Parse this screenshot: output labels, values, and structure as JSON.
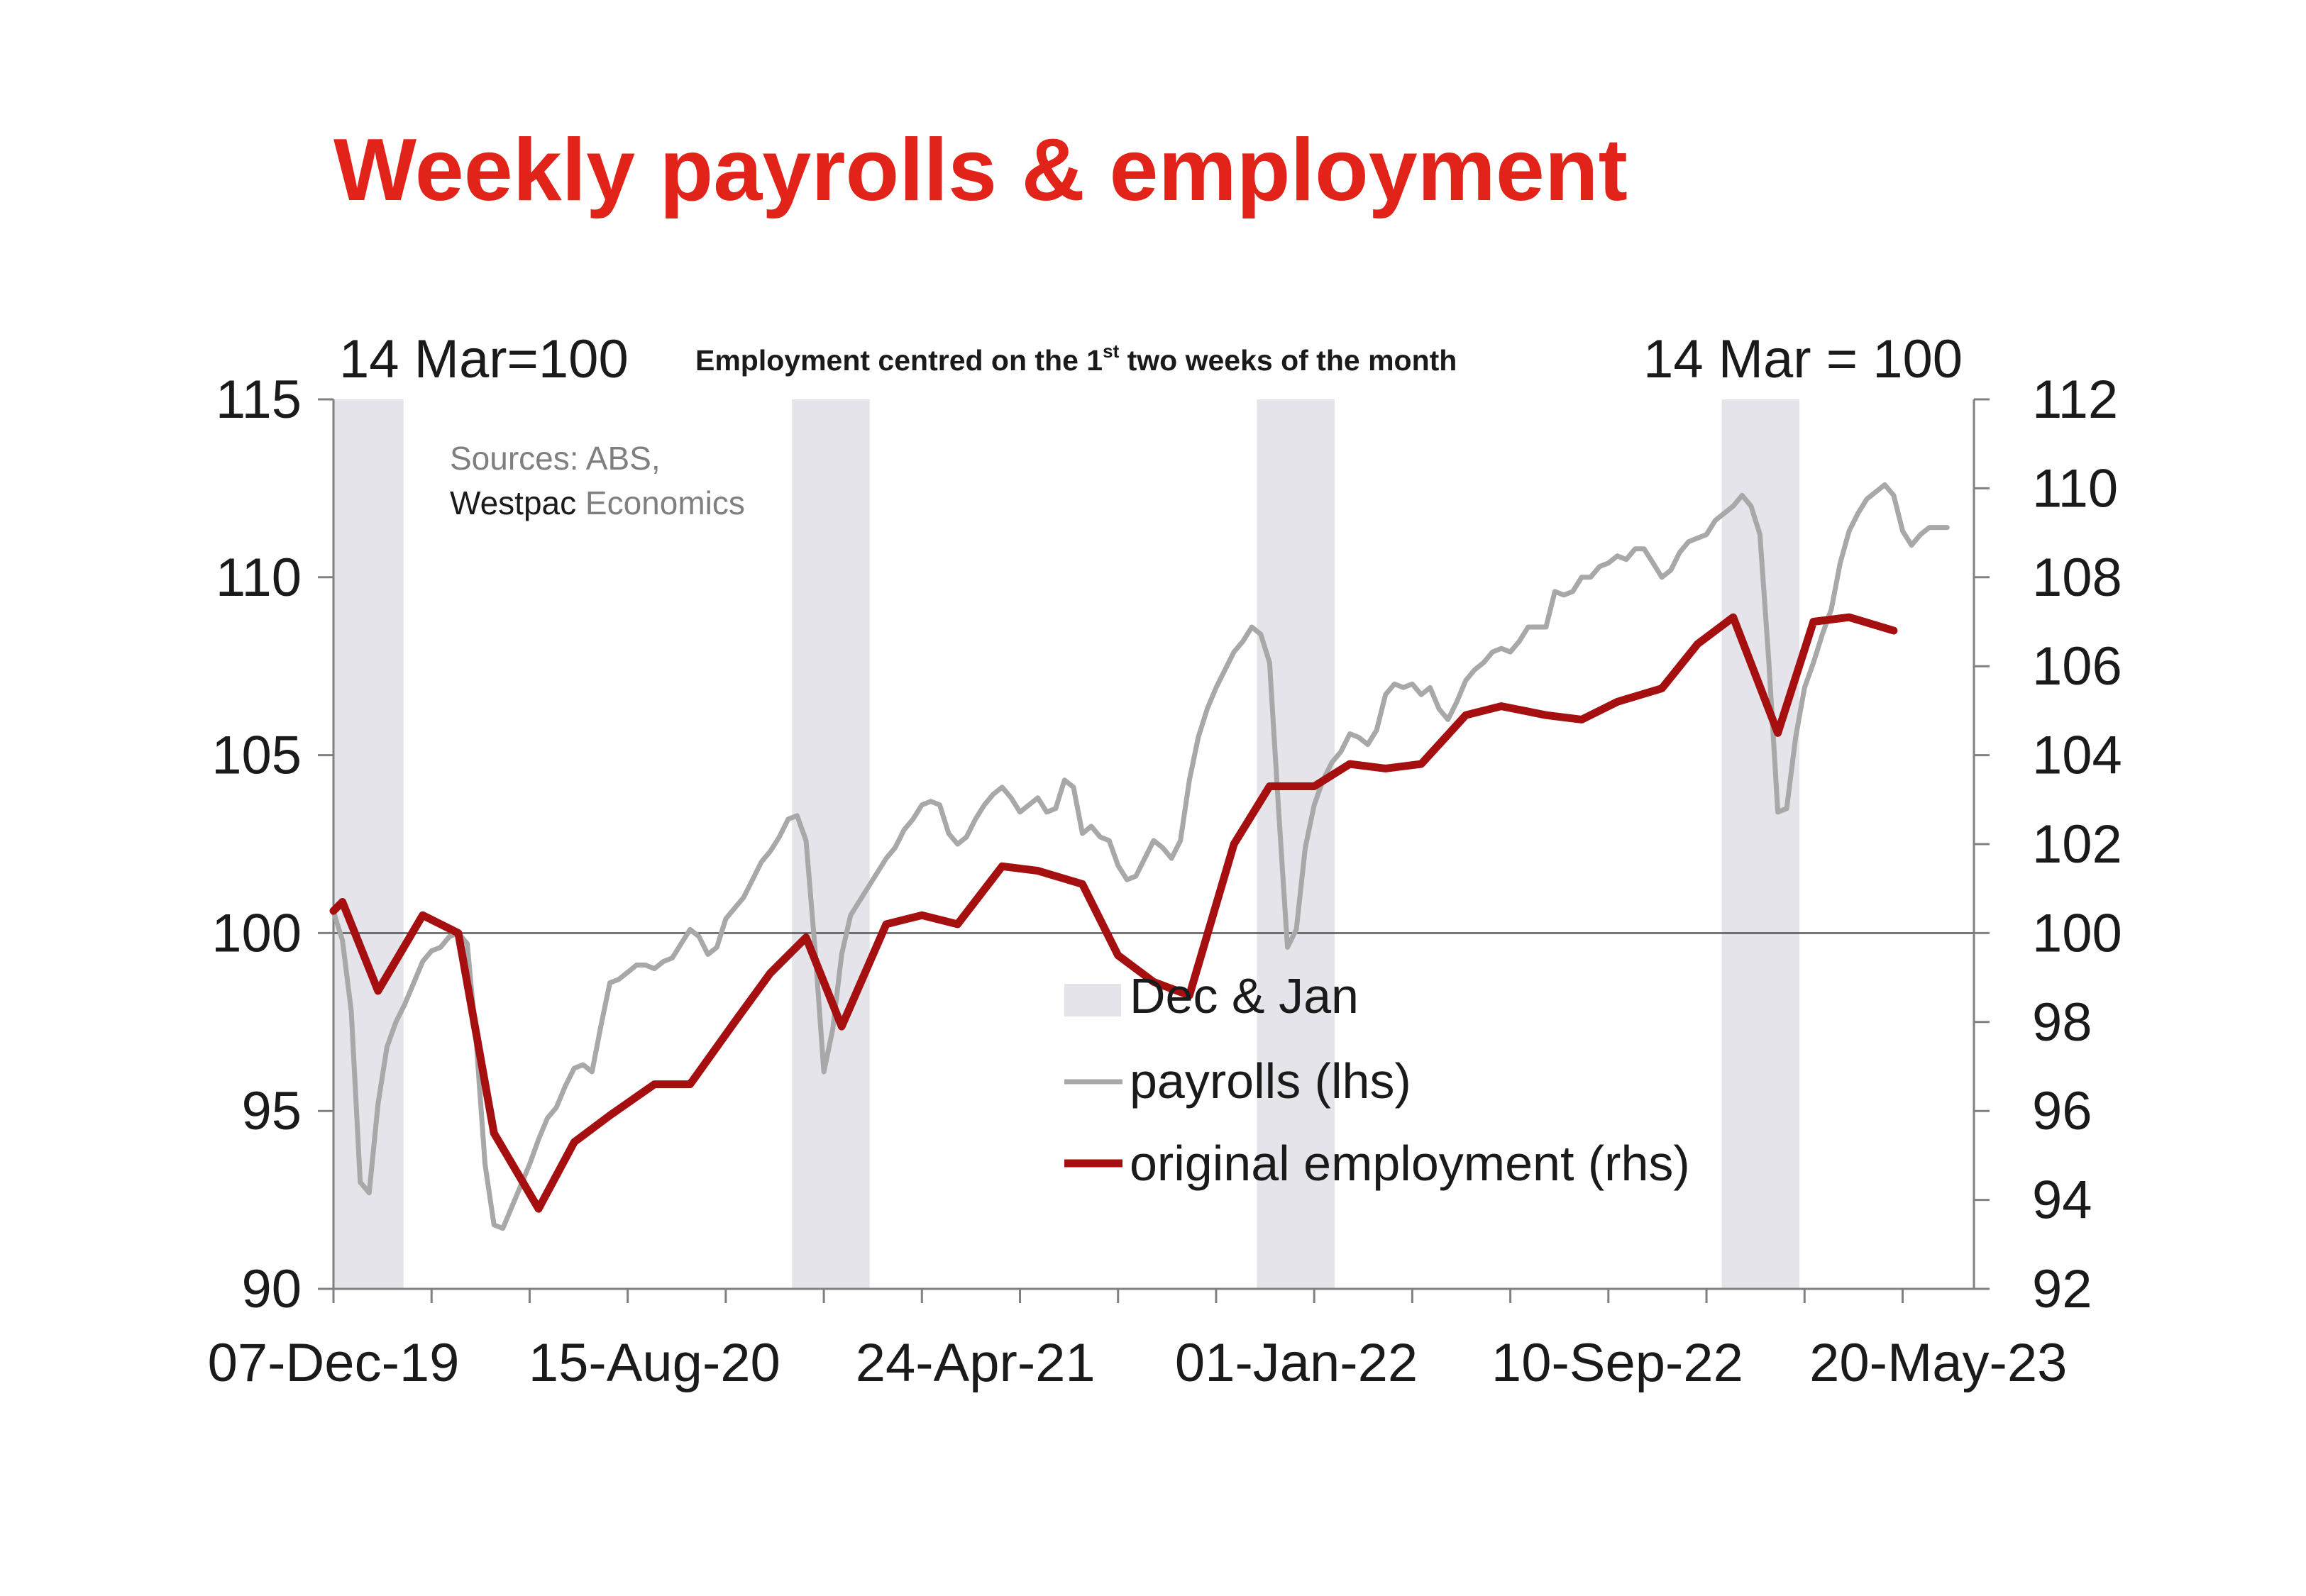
{
  "title": "Weekly payrolls & employment",
  "header": {
    "left_label": "14 Mar=100",
    "center_pre": "Employment centred on the 1",
    "center_sup": "st",
    "center_post": " two weeks of the month",
    "right_label": "14 Mar = 100"
  },
  "source": {
    "line1": "Sources: ABS,",
    "brand": "Westpac",
    "line2_rest": " Economics"
  },
  "colors": {
    "title": "#e2231a",
    "payrolls": "#a8a8a8",
    "employment": "#a50f0f",
    "shade": "#e4e4ea",
    "axis": "#808080"
  },
  "chart_data": {
    "type": "line",
    "x_axis": {
      "type": "date",
      "range": [
        "2019-12-07",
        "2023-06-17"
      ],
      "tick_labels": [
        "07-Dec-19",
        "15-Aug-20",
        "24-Apr-21",
        "01-Jan-22",
        "10-Sep-22",
        "20-May-23"
      ],
      "tick_dates": [
        "2019-12-07",
        "2020-08-15",
        "2021-04-24",
        "2022-01-01",
        "2022-09-10",
        "2023-05-20"
      ]
    },
    "y_left": {
      "label": "14 Mar=100",
      "range": [
        90,
        115
      ],
      "ticks": [
        90,
        95,
        100,
        105,
        110,
        115
      ]
    },
    "y_right": {
      "label": "14 Mar = 100",
      "range": [
        92,
        112
      ],
      "ticks": [
        92,
        94,
        96,
        98,
        100,
        102,
        104,
        106,
        108,
        110,
        112
      ]
    },
    "reference_line": {
      "axis": "left",
      "value": 100
    },
    "shaded_periods": [
      {
        "name": "Dec & Jan",
        "start": "2019-12-07",
        "end": "2020-01-31"
      },
      {
        "name": "Dec & Jan",
        "start": "2020-12-01",
        "end": "2021-01-31"
      },
      {
        "name": "Dec & Jan",
        "start": "2021-12-01",
        "end": "2022-01-31"
      },
      {
        "name": "Dec & Jan",
        "start": "2022-12-01",
        "end": "2023-01-31"
      }
    ],
    "legend": {
      "position": "center",
      "items": [
        "Dec & Jan",
        "payrolls (lhs)",
        "original employment (rhs)"
      ]
    },
    "series": [
      {
        "name": "payrolls (lhs)",
        "axis": "left",
        "points": [
          [
            "2019-12-07",
            100.6
          ],
          [
            "2019-12-14",
            99.8
          ],
          [
            "2019-12-21",
            97.8
          ],
          [
            "2019-12-28",
            93.0
          ],
          [
            "2020-01-04",
            92.7
          ],
          [
            "2020-01-11",
            95.2
          ],
          [
            "2020-01-18",
            96.8
          ],
          [
            "2020-01-25",
            97.5
          ],
          [
            "2020-02-01",
            98.0
          ],
          [
            "2020-02-08",
            98.6
          ],
          [
            "2020-02-15",
            99.2
          ],
          [
            "2020-02-22",
            99.5
          ],
          [
            "2020-02-29",
            99.6
          ],
          [
            "2020-03-07",
            99.9
          ],
          [
            "2020-03-14",
            100.0
          ],
          [
            "2020-03-21",
            99.7
          ],
          [
            "2020-03-28",
            97.0
          ],
          [
            "2020-04-04",
            93.5
          ],
          [
            "2020-04-11",
            91.8
          ],
          [
            "2020-04-18",
            91.7
          ],
          [
            "2020-04-25",
            92.3
          ],
          [
            "2020-05-02",
            92.9
          ],
          [
            "2020-05-09",
            93.5
          ],
          [
            "2020-05-16",
            94.2
          ],
          [
            "2020-05-23",
            94.8
          ],
          [
            "2020-05-30",
            95.1
          ],
          [
            "2020-06-06",
            95.7
          ],
          [
            "2020-06-13",
            96.2
          ],
          [
            "2020-06-20",
            96.3
          ],
          [
            "2020-06-27",
            96.1
          ],
          [
            "2020-07-04",
            97.4
          ],
          [
            "2020-07-11",
            98.6
          ],
          [
            "2020-07-18",
            98.7
          ],
          [
            "2020-07-25",
            98.9
          ],
          [
            "2020-08-01",
            99.1
          ],
          [
            "2020-08-08",
            99.1
          ],
          [
            "2020-08-15",
            99.0
          ],
          [
            "2020-08-22",
            99.2
          ],
          [
            "2020-08-29",
            99.3
          ],
          [
            "2020-09-05",
            99.7
          ],
          [
            "2020-09-12",
            100.1
          ],
          [
            "2020-09-19",
            99.9
          ],
          [
            "2020-09-26",
            99.4
          ],
          [
            "2020-10-03",
            99.6
          ],
          [
            "2020-10-10",
            100.4
          ],
          [
            "2020-10-17",
            100.7
          ],
          [
            "2020-10-24",
            101.0
          ],
          [
            "2020-10-31",
            101.5
          ],
          [
            "2020-11-07",
            102.0
          ],
          [
            "2020-11-14",
            102.3
          ],
          [
            "2020-11-21",
            102.7
          ],
          [
            "2020-11-28",
            103.2
          ],
          [
            "2020-12-05",
            103.3
          ],
          [
            "2020-12-12",
            102.6
          ],
          [
            "2020-12-19",
            99.6
          ],
          [
            "2020-12-26",
            96.1
          ],
          [
            "2021-01-02",
            97.3
          ],
          [
            "2021-01-09",
            99.4
          ],
          [
            "2021-01-16",
            100.5
          ],
          [
            "2021-01-23",
            100.9
          ],
          [
            "2021-01-30",
            101.3
          ],
          [
            "2021-02-06",
            101.7
          ],
          [
            "2021-02-13",
            102.1
          ],
          [
            "2021-02-20",
            102.4
          ],
          [
            "2021-02-27",
            102.9
          ],
          [
            "2021-03-06",
            103.2
          ],
          [
            "2021-03-13",
            103.6
          ],
          [
            "2021-03-20",
            103.7
          ],
          [
            "2021-03-27",
            103.6
          ],
          [
            "2021-04-03",
            102.8
          ],
          [
            "2021-04-10",
            102.5
          ],
          [
            "2021-04-17",
            102.7
          ],
          [
            "2021-04-24",
            103.2
          ],
          [
            "2021-05-01",
            103.6
          ],
          [
            "2021-05-08",
            103.9
          ],
          [
            "2021-05-15",
            104.1
          ],
          [
            "2021-05-22",
            103.8
          ],
          [
            "2021-05-29",
            103.4
          ],
          [
            "2021-06-05",
            103.6
          ],
          [
            "2021-06-12",
            103.8
          ],
          [
            "2021-06-19",
            103.4
          ],
          [
            "2021-06-26",
            103.5
          ],
          [
            "2021-07-03",
            104.3
          ],
          [
            "2021-07-10",
            104.1
          ],
          [
            "2021-07-17",
            102.8
          ],
          [
            "2021-07-24",
            103.0
          ],
          [
            "2021-07-31",
            102.7
          ],
          [
            "2021-08-07",
            102.6
          ],
          [
            "2021-08-14",
            101.9
          ],
          [
            "2021-08-21",
            101.5
          ],
          [
            "2021-08-28",
            101.6
          ],
          [
            "2021-09-04",
            102.1
          ],
          [
            "2021-09-11",
            102.6
          ],
          [
            "2021-09-18",
            102.4
          ],
          [
            "2021-09-25",
            102.1
          ],
          [
            "2021-10-02",
            102.6
          ],
          [
            "2021-10-09",
            104.3
          ],
          [
            "2021-10-16",
            105.5
          ],
          [
            "2021-10-23",
            106.3
          ],
          [
            "2021-10-30",
            106.9
          ],
          [
            "2021-11-06",
            107.4
          ],
          [
            "2021-11-13",
            107.9
          ],
          [
            "2021-11-20",
            108.2
          ],
          [
            "2021-11-27",
            108.6
          ],
          [
            "2021-12-04",
            108.4
          ],
          [
            "2021-12-11",
            107.6
          ],
          [
            "2021-12-18",
            103.5
          ],
          [
            "2021-12-25",
            99.6
          ],
          [
            "2022-01-01",
            100.1
          ],
          [
            "2022-01-08",
            102.4
          ],
          [
            "2022-01-15",
            103.6
          ],
          [
            "2022-01-22",
            104.3
          ],
          [
            "2022-01-29",
            104.8
          ],
          [
            "2022-02-05",
            105.1
          ],
          [
            "2022-02-12",
            105.6
          ],
          [
            "2022-02-19",
            105.5
          ],
          [
            "2022-02-26",
            105.3
          ],
          [
            "2022-03-05",
            105.7
          ],
          [
            "2022-03-12",
            106.7
          ],
          [
            "2022-03-19",
            107.0
          ],
          [
            "2022-03-26",
            106.9
          ],
          [
            "2022-04-02",
            107.0
          ],
          [
            "2022-04-09",
            106.7
          ],
          [
            "2022-04-16",
            106.9
          ],
          [
            "2022-04-23",
            106.3
          ],
          [
            "2022-04-30",
            106.0
          ],
          [
            "2022-05-07",
            106.5
          ],
          [
            "2022-05-14",
            107.1
          ],
          [
            "2022-05-21",
            107.4
          ],
          [
            "2022-05-28",
            107.6
          ],
          [
            "2022-06-04",
            107.9
          ],
          [
            "2022-06-11",
            108.0
          ],
          [
            "2022-06-18",
            107.9
          ],
          [
            "2022-06-25",
            108.2
          ],
          [
            "2022-07-02",
            108.6
          ],
          [
            "2022-07-09",
            108.6
          ],
          [
            "2022-07-16",
            108.6
          ],
          [
            "2022-07-23",
            109.6
          ],
          [
            "2022-07-30",
            109.5
          ],
          [
            "2022-08-06",
            109.6
          ],
          [
            "2022-08-13",
            110.0
          ],
          [
            "2022-08-20",
            110.0
          ],
          [
            "2022-08-27",
            110.3
          ],
          [
            "2022-09-03",
            110.4
          ],
          [
            "2022-09-10",
            110.6
          ],
          [
            "2022-09-17",
            110.5
          ],
          [
            "2022-09-24",
            110.8
          ],
          [
            "2022-10-01",
            110.8
          ],
          [
            "2022-10-08",
            110.4
          ],
          [
            "2022-10-15",
            110.0
          ],
          [
            "2022-10-22",
            110.2
          ],
          [
            "2022-10-29",
            110.7
          ],
          [
            "2022-11-05",
            111.0
          ],
          [
            "2022-11-12",
            111.1
          ],
          [
            "2022-11-19",
            111.2
          ],
          [
            "2022-11-26",
            111.6
          ],
          [
            "2022-12-03",
            111.8
          ],
          [
            "2022-12-10",
            112.0
          ],
          [
            "2022-12-17",
            112.3
          ],
          [
            "2022-12-24",
            112.0
          ],
          [
            "2022-12-31",
            111.2
          ],
          [
            "2023-01-07",
            107.6
          ],
          [
            "2023-01-14",
            103.4
          ],
          [
            "2023-01-21",
            103.5
          ],
          [
            "2023-01-28",
            105.5
          ],
          [
            "2023-02-04",
            106.9
          ],
          [
            "2023-02-11",
            107.6
          ],
          [
            "2023-02-18",
            108.4
          ],
          [
            "2023-02-25",
            109.1
          ],
          [
            "2023-03-04",
            110.4
          ],
          [
            "2023-03-11",
            111.3
          ],
          [
            "2023-03-18",
            111.8
          ],
          [
            "2023-03-25",
            112.2
          ],
          [
            "2023-04-01",
            112.4
          ],
          [
            "2023-04-08",
            112.6
          ],
          [
            "2023-04-15",
            112.3
          ],
          [
            "2023-04-22",
            111.3
          ],
          [
            "2023-04-29",
            110.9
          ],
          [
            "2023-05-06",
            111.2
          ],
          [
            "2023-05-13",
            111.4
          ],
          [
            "2023-05-20",
            111.4
          ],
          [
            "2023-05-27",
            111.4
          ]
        ]
      },
      {
        "name": "original employment (rhs)",
        "axis": "right",
        "points": [
          [
            "2019-12-07",
            100.5
          ],
          [
            "2019-12-14",
            100.7
          ],
          [
            "2020-01-11",
            98.7
          ],
          [
            "2020-02-15",
            100.4
          ],
          [
            "2020-03-14",
            100.0
          ],
          [
            "2020-04-11",
            95.5
          ],
          [
            "2020-05-16",
            93.8
          ],
          [
            "2020-06-13",
            95.3
          ],
          [
            "2020-07-11",
            95.9
          ],
          [
            "2020-08-15",
            96.6
          ],
          [
            "2020-09-12",
            96.6
          ],
          [
            "2020-10-17",
            98.0
          ],
          [
            "2020-11-14",
            99.1
          ],
          [
            "2020-12-12",
            99.9
          ],
          [
            "2021-01-09",
            97.9
          ],
          [
            "2021-02-13",
            100.2
          ],
          [
            "2021-03-13",
            100.4
          ],
          [
            "2021-04-10",
            100.2
          ],
          [
            "2021-05-15",
            101.5
          ],
          [
            "2021-06-12",
            101.4
          ],
          [
            "2021-07-17",
            101.1
          ],
          [
            "2021-08-14",
            99.5
          ],
          [
            "2021-09-11",
            98.9
          ],
          [
            "2021-10-09",
            98.6
          ],
          [
            "2021-11-13",
            102.0
          ],
          [
            "2021-12-11",
            103.3
          ],
          [
            "2022-01-15",
            103.3
          ],
          [
            "2022-02-12",
            103.8
          ],
          [
            "2022-03-12",
            103.7
          ],
          [
            "2022-04-09",
            103.8
          ],
          [
            "2022-05-14",
            104.9
          ],
          [
            "2022-06-11",
            105.1
          ],
          [
            "2022-07-16",
            104.9
          ],
          [
            "2022-08-13",
            104.8
          ],
          [
            "2022-09-10",
            105.2
          ],
          [
            "2022-10-15",
            105.5
          ],
          [
            "2022-11-12",
            106.5
          ],
          [
            "2022-12-10",
            107.1
          ],
          [
            "2023-01-14",
            104.5
          ],
          [
            "2023-02-11",
            107.0
          ],
          [
            "2023-03-11",
            107.1
          ],
          [
            "2023-04-15",
            106.8
          ]
        ]
      }
    ]
  }
}
